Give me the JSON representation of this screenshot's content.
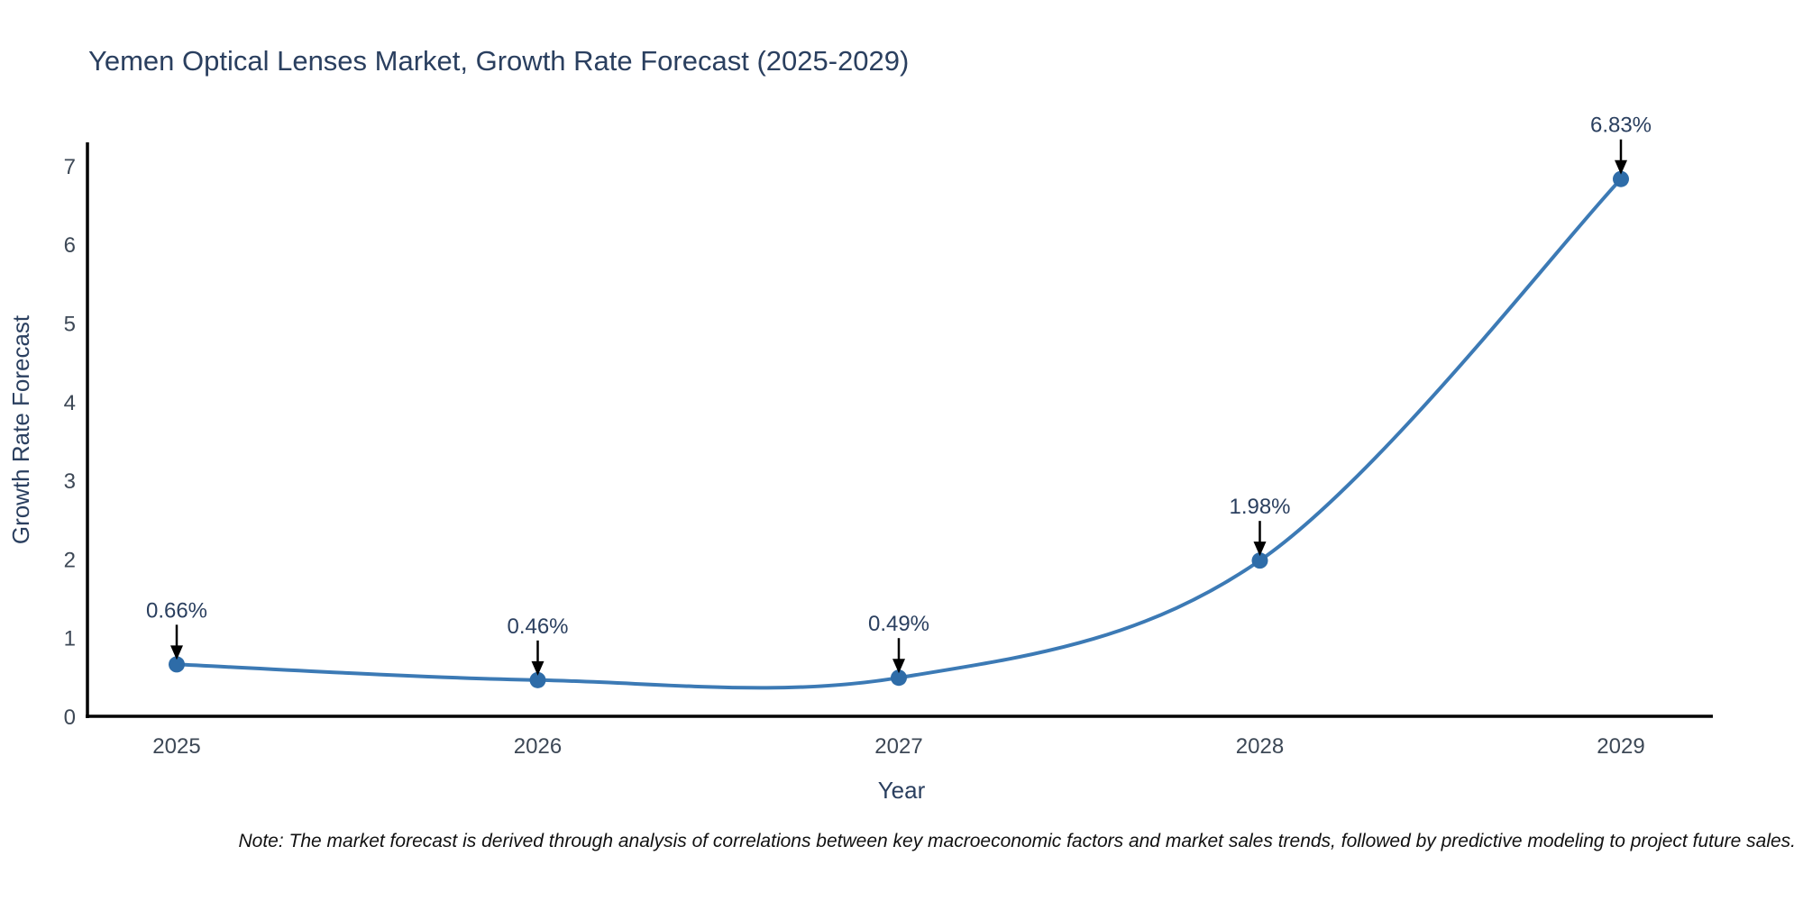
{
  "title": "Yemen Optical Lenses Market, Growth Rate Forecast (2025-2029)",
  "note": "Note: The market forecast is derived through analysis of correlations between key macroeconomic factors and market sales trends, followed by predictive modeling to project future sales.",
  "chart_data": {
    "type": "line",
    "title": "Yemen Optical Lenses Market, Growth Rate Forecast (2025-2029)",
    "xlabel": "Year",
    "ylabel": "Growth Rate Forecast",
    "x": [
      2025,
      2026,
      2027,
      2028,
      2029
    ],
    "series": [
      {
        "name": "Growth Rate Forecast",
        "values": [
          0.66,
          0.46,
          0.49,
          1.98,
          6.83
        ]
      }
    ],
    "point_labels": [
      "0.66%",
      "0.46%",
      "0.49%",
      "1.98%",
      "6.83%"
    ],
    "yticks": [
      0,
      1,
      2,
      3,
      4,
      5,
      6,
      7
    ],
    "ylim": [
      0,
      7.3
    ],
    "line_shape": "spline",
    "grid": false,
    "legend": "none",
    "colors": {
      "line": "#3c7ab5",
      "marker": "#2e6ca8",
      "axis": "#000000",
      "annotation_arrow": "#000000",
      "title_text": "#2a3f5f",
      "background": "#ffffff"
    }
  }
}
